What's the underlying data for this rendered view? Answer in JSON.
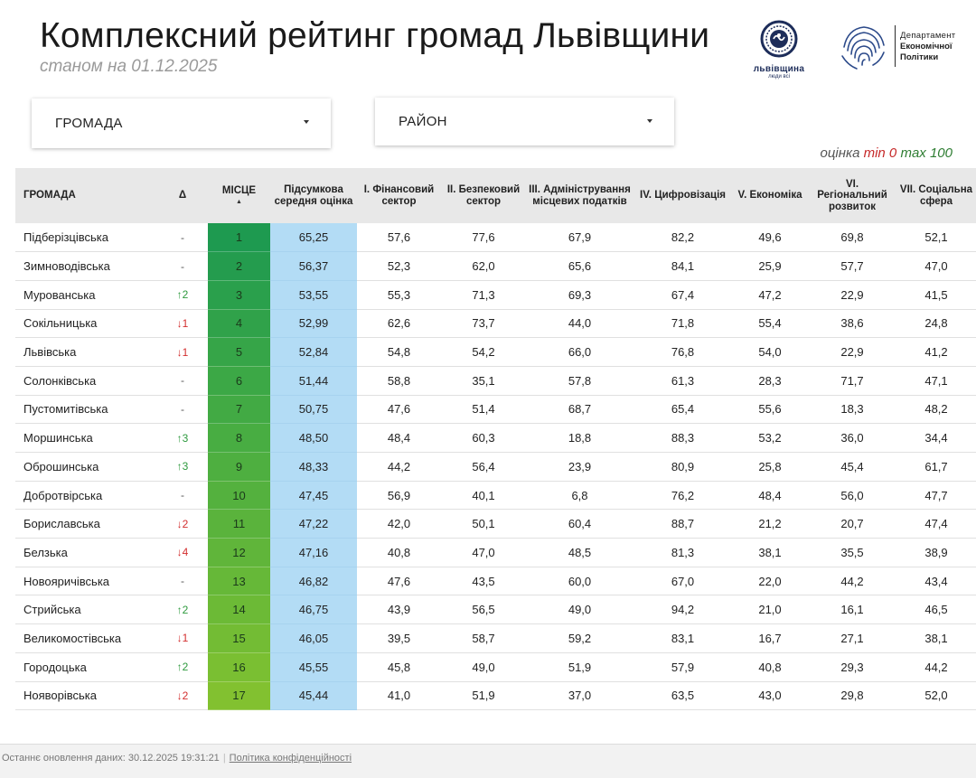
{
  "header": {
    "title": "Комплексний рейтинг громад Львівщини",
    "subtitle": "станом на 01.12.2025",
    "logo_lviv_name": "львівщина",
    "logo_lviv_tag": "люди всі",
    "dept_line1": "Департамент",
    "dept_line2": "Економічної",
    "dept_line3": "Політики"
  },
  "filters": {
    "hromada_label": "ГРОМАДА",
    "rayon_label": "РАЙОН"
  },
  "legend": {
    "label": "оцінка",
    "min": "min 0",
    "max": "max 100",
    "min_color": "#c62828",
    "max_color": "#2e7d32"
  },
  "table": {
    "headers": {
      "name": "ГРОМАДА",
      "delta": "Δ",
      "place": "МІСЦЕ",
      "score": "Підсумкова середня оцінка",
      "c1": "I. Фінансовий сектор",
      "c2": "II. Безпековий сектор",
      "c3": "III. Адміністрування місцевих податків",
      "c4": "IV. Цифровізація",
      "c5": "V. Економіка",
      "c6": "VI. Регіональний розвиток",
      "c7": "VII. Соціальна сфера"
    },
    "rows": [
      {
        "name": "Підберізцівська",
        "delta": "-",
        "dir": "none",
        "place": "1",
        "score": "65,25",
        "c1": "57,6",
        "c2": "77,6",
        "c3": "67,9",
        "c4": "82,2",
        "c5": "49,6",
        "c6": "69,8",
        "c7": "52,1"
      },
      {
        "name": "Зимноводівська",
        "delta": "-",
        "dir": "none",
        "place": "2",
        "score": "56,37",
        "c1": "52,3",
        "c2": "62,0",
        "c3": "65,6",
        "c4": "84,1",
        "c5": "25,9",
        "c6": "57,7",
        "c7": "47,0"
      },
      {
        "name": "Мурованська",
        "delta": "↑2",
        "dir": "up",
        "place": "3",
        "score": "53,55",
        "c1": "55,3",
        "c2": "71,3",
        "c3": "69,3",
        "c4": "67,4",
        "c5": "47,2",
        "c6": "22,9",
        "c7": "41,5"
      },
      {
        "name": "Сокільницька",
        "delta": "↓1",
        "dir": "down",
        "place": "4",
        "score": "52,99",
        "c1": "62,6",
        "c2": "73,7",
        "c3": "44,0",
        "c4": "71,8",
        "c5": "55,4",
        "c6": "38,6",
        "c7": "24,8"
      },
      {
        "name": "Львівська",
        "delta": "↓1",
        "dir": "down",
        "place": "5",
        "score": "52,84",
        "c1": "54,8",
        "c2": "54,2",
        "c3": "66,0",
        "c4": "76,8",
        "c5": "54,0",
        "c6": "22,9",
        "c7": "41,2"
      },
      {
        "name": "Солонківська",
        "delta": "-",
        "dir": "none",
        "place": "6",
        "score": "51,44",
        "c1": "58,8",
        "c2": "35,1",
        "c3": "57,8",
        "c4": "61,3",
        "c5": "28,3",
        "c6": "71,7",
        "c7": "47,1"
      },
      {
        "name": "Пустомитівська",
        "delta": "-",
        "dir": "none",
        "place": "7",
        "score": "50,75",
        "c1": "47,6",
        "c2": "51,4",
        "c3": "68,7",
        "c4": "65,4",
        "c5": "55,6",
        "c6": "18,3",
        "c7": "48,2"
      },
      {
        "name": "Моршинська",
        "delta": "↑3",
        "dir": "up",
        "place": "8",
        "score": "48,50",
        "c1": "48,4",
        "c2": "60,3",
        "c3": "18,8",
        "c4": "88,3",
        "c5": "53,2",
        "c6": "36,0",
        "c7": "34,4"
      },
      {
        "name": "Оброшинська",
        "delta": "↑3",
        "dir": "up",
        "place": "9",
        "score": "48,33",
        "c1": "44,2",
        "c2": "56,4",
        "c3": "23,9",
        "c4": "80,9",
        "c5": "25,8",
        "c6": "45,4",
        "c7": "61,7"
      },
      {
        "name": "Добротвірська",
        "delta": "-",
        "dir": "none",
        "place": "10",
        "score": "47,45",
        "c1": "56,9",
        "c2": "40,1",
        "c3": "6,8",
        "c4": "76,2",
        "c5": "48,4",
        "c6": "56,0",
        "c7": "47,7"
      },
      {
        "name": "Бориславська",
        "delta": "↓2",
        "dir": "down",
        "place": "11",
        "score": "47,22",
        "c1": "42,0",
        "c2": "50,1",
        "c3": "60,4",
        "c4": "88,7",
        "c5": "21,2",
        "c6": "20,7",
        "c7": "47,4"
      },
      {
        "name": "Белзька",
        "delta": "↓4",
        "dir": "down",
        "place": "12",
        "score": "47,16",
        "c1": "40,8",
        "c2": "47,0",
        "c3": "48,5",
        "c4": "81,3",
        "c5": "38,1",
        "c6": "35,5",
        "c7": "38,9"
      },
      {
        "name": "Новояричівська",
        "delta": "-",
        "dir": "none",
        "place": "13",
        "score": "46,82",
        "c1": "47,6",
        "c2": "43,5",
        "c3": "60,0",
        "c4": "67,0",
        "c5": "22,0",
        "c6": "44,2",
        "c7": "43,4"
      },
      {
        "name": "Стрийська",
        "delta": "↑2",
        "dir": "up",
        "place": "14",
        "score": "46,75",
        "c1": "43,9",
        "c2": "56,5",
        "c3": "49,0",
        "c4": "94,2",
        "c5": "21,0",
        "c6": "16,1",
        "c7": "46,5"
      },
      {
        "name": "Великомостівська",
        "delta": "↓1",
        "dir": "down",
        "place": "15",
        "score": "46,05",
        "c1": "39,5",
        "c2": "58,7",
        "c3": "59,2",
        "c4": "83,1",
        "c5": "16,7",
        "c6": "27,1",
        "c7": "38,1"
      },
      {
        "name": "Городоцька",
        "delta": "↑2",
        "dir": "up",
        "place": "16",
        "score": "45,55",
        "c1": "45,8",
        "c2": "49,0",
        "c3": "51,9",
        "c4": "57,9",
        "c5": "40,8",
        "c6": "29,3",
        "c7": "44,2"
      },
      {
        "name": "Нояворівська",
        "delta": "↓2",
        "dir": "down",
        "place": "17",
        "score": "45,44",
        "c1": "41,0",
        "c2": "51,9",
        "c3": "37,0",
        "c4": "63,5",
        "c5": "43,0",
        "c6": "29,8",
        "c7": "52,0"
      }
    ],
    "place_colors": [
      "#1e9a50",
      "#249c4e",
      "#2aa04c",
      "#30a24a",
      "#36a548",
      "#3ca846",
      "#42aa44",
      "#48ad42",
      "#4eaf40",
      "#54b13e",
      "#5ab33c",
      "#60b53a",
      "#66b838",
      "#6cba36",
      "#73bc34",
      "#7abf32",
      "#82c130"
    ],
    "score_bg": "#b3dcf5"
  },
  "footer": {
    "updated": "Останнє оновлення даних: 30.12.2025 19:31:21",
    "separator": "|",
    "privacy_link": "Політика конфіденційності"
  }
}
